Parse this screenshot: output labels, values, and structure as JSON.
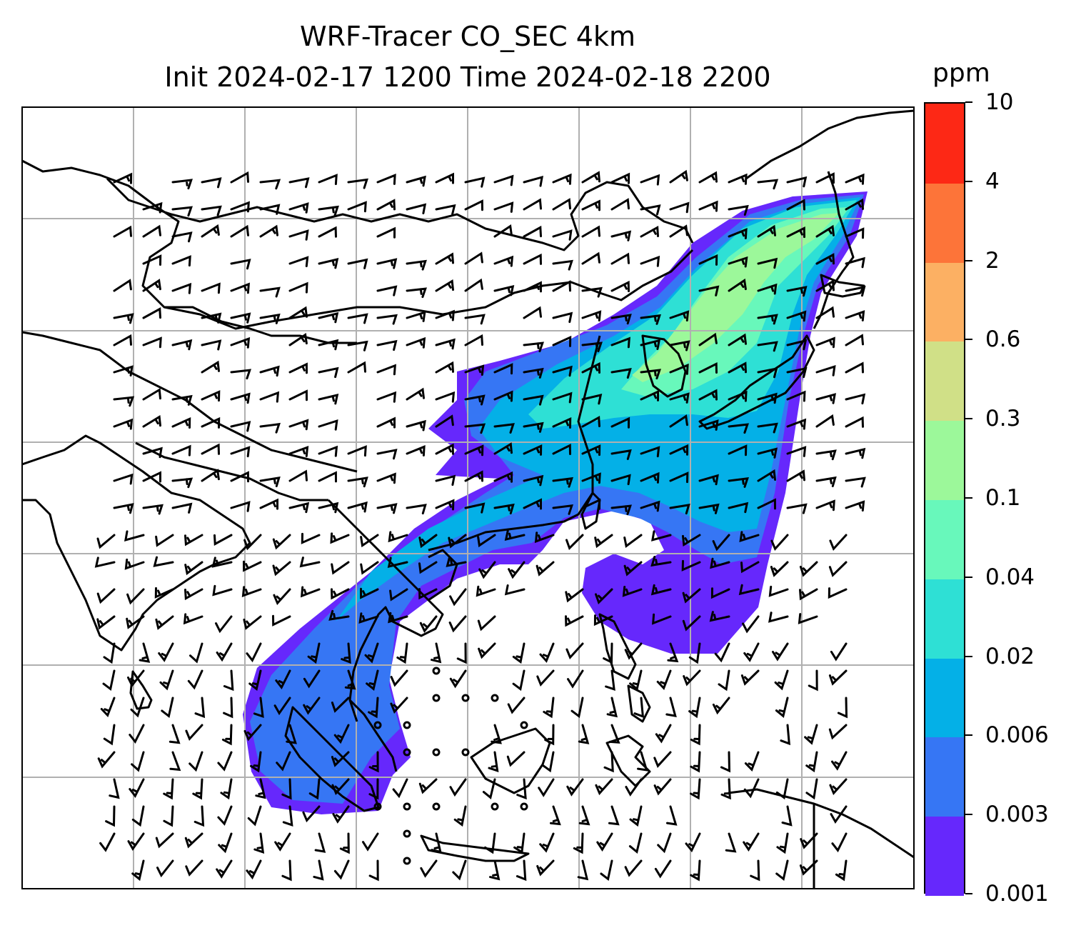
{
  "title_line1": "WRF-Tracer CO_SEC 4km",
  "title_line2": "Init 2024-02-17 1200 Time 2024-02-18 2200",
  "colorbar": {
    "units": "ppm",
    "levels": [
      "0.001",
      "0.003",
      "0.006",
      "0.02",
      "0.04",
      "0.1",
      "0.3",
      "0.6",
      "2",
      "4",
      "10"
    ],
    "colors": [
      "#6628fc",
      "#3676f4",
      "#04b0e7",
      "#2ee0d5",
      "#68f8bb",
      "#9cf89a",
      "#d0e087",
      "#fcb063",
      "#fd7439",
      "#fd2815"
    ]
  },
  "map_style": {
    "coastline_color": "#000000",
    "gridline_color": "#b0b0b0",
    "barb_color": "#000000"
  }
}
